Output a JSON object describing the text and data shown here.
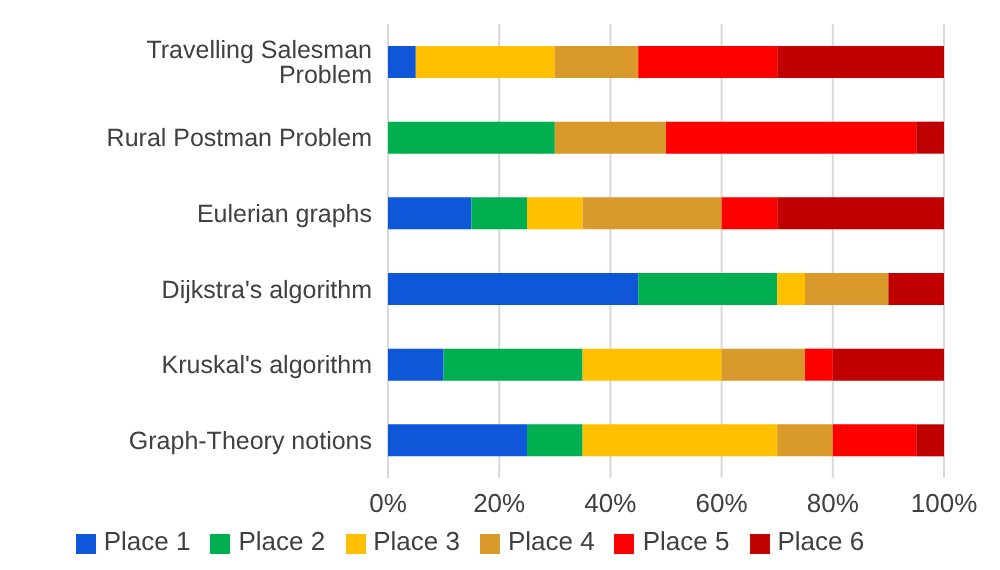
{
  "chart_data": {
    "type": "bar",
    "orientation": "horizontal",
    "stacked": true,
    "categories": [
      "Travelling Salesman Problem",
      "Rural Postman Problem",
      "Eulerian graphs",
      "Dijkstra's algorithm",
      "Kruskal's algorithm",
      "Graph-Theory notions"
    ],
    "series": [
      {
        "name": "Place 1",
        "color": "#0f57d9",
        "values": [
          5,
          0,
          15,
          45,
          10,
          25
        ]
      },
      {
        "name": "Place 2",
        "color": "#00b050",
        "values": [
          0,
          30,
          10,
          25,
          25,
          10
        ]
      },
      {
        "name": "Place 3",
        "color": "#ffc000",
        "values": [
          25,
          0,
          10,
          5,
          25,
          35
        ]
      },
      {
        "name": "Place 4",
        "color": "#d99a2b",
        "values": [
          15,
          20,
          25,
          15,
          15,
          10
        ]
      },
      {
        "name": "Place 5",
        "color": "#ff0000",
        "values": [
          25,
          45,
          10,
          0,
          5,
          15
        ]
      },
      {
        "name": "Place 6",
        "color": "#c00000",
        "values": [
          30,
          5,
          30,
          10,
          20,
          5
        ]
      }
    ],
    "xlim": [
      0,
      100
    ],
    "xticks": [
      {
        "value": 0,
        "label": "0%"
      },
      {
        "value": 20,
        "label": "20%"
      },
      {
        "value": 40,
        "label": "40%"
      },
      {
        "value": 60,
        "label": "60%"
      },
      {
        "value": 80,
        "label": "80%"
      },
      {
        "value": 100,
        "label": "100%"
      }
    ],
    "grid": "x",
    "legend": "bottom"
  }
}
